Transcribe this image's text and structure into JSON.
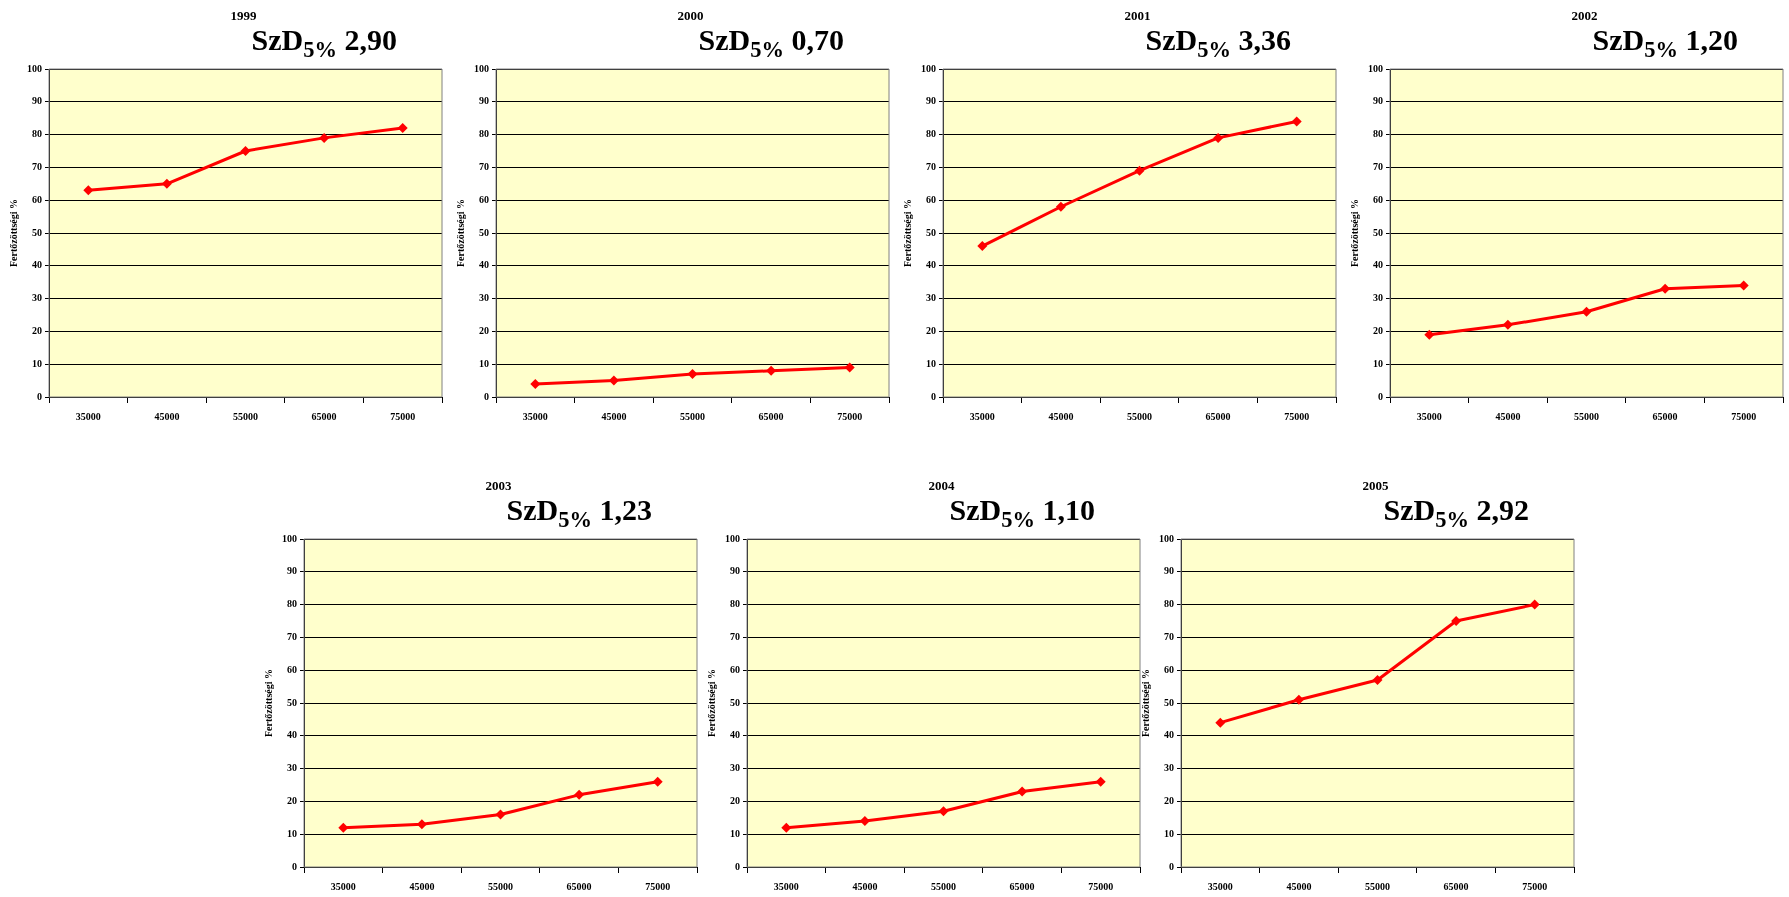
{
  "chart_data": [
    {
      "type": "line",
      "title": "1999",
      "subtitle": "SzD$_{5%}$ 2,90",
      "ylabel": "Fertőzöttségi %",
      "categories": [
        "35000",
        "45000",
        "55000",
        "65000",
        "75000"
      ],
      "series": [
        {
          "color": "#ff0000",
          "values": [
            63,
            65,
            75,
            79,
            82
          ]
        }
      ],
      "ylim": [
        0,
        100
      ],
      "yticks": [
        0,
        10,
        20,
        30,
        40,
        50,
        60,
        70,
        80,
        90,
        100
      ],
      "grid": "y",
      "marker": "diamond"
    },
    {
      "type": "line",
      "title": "2000",
      "subtitle": "SzD$_{5%}$ 0,70",
      "ylabel": "Fertőzöttségi %",
      "categories": [
        "35000",
        "45000",
        "55000",
        "65000",
        "75000"
      ],
      "series": [
        {
          "color": "#ff0000",
          "values": [
            4,
            5,
            7,
            8,
            9
          ]
        }
      ],
      "ylim": [
        0,
        100
      ],
      "yticks": [
        0,
        10,
        20,
        30,
        40,
        50,
        60,
        70,
        80,
        90,
        100
      ],
      "grid": "y",
      "marker": "diamond"
    },
    {
      "type": "line",
      "title": "2001",
      "subtitle": "SzD$_{5%}$ 3,36",
      "ylabel": "Fertőzöttségi %",
      "categories": [
        "35000",
        "45000",
        "55000",
        "65000",
        "75000"
      ],
      "series": [
        {
          "color": "#ff0000",
          "values": [
            46,
            58,
            69,
            79,
            84
          ]
        }
      ],
      "ylim": [
        0,
        100
      ],
      "yticks": [
        0,
        10,
        20,
        30,
        40,
        50,
        60,
        70,
        80,
        90,
        100
      ],
      "grid": "y",
      "marker": "diamond"
    },
    {
      "type": "line",
      "title": "2002",
      "subtitle": "SzD$_{5%}$ 1,20",
      "ylabel": "Fertőzöttségi %",
      "categories": [
        "35000",
        "45000",
        "55000",
        "65000",
        "75000"
      ],
      "series": [
        {
          "color": "#ff0000",
          "values": [
            19,
            22,
            26,
            33,
            34
          ]
        }
      ],
      "ylim": [
        0,
        100
      ],
      "yticks": [
        0,
        10,
        20,
        30,
        40,
        50,
        60,
        70,
        80,
        90,
        100
      ],
      "grid": "y",
      "marker": "diamond"
    },
    {
      "type": "line",
      "title": "2003",
      "subtitle": "SzD$_{5%}$ 1,23",
      "ylabel": "Fertőzöttségi %",
      "categories": [
        "35000",
        "45000",
        "55000",
        "65000",
        "75000"
      ],
      "series": [
        {
          "color": "#ff0000",
          "values": [
            12,
            13,
            16,
            22,
            26
          ]
        }
      ],
      "ylim": [
        0,
        100
      ],
      "yticks": [
        0,
        10,
        20,
        30,
        40,
        50,
        60,
        70,
        80,
        90,
        100
      ],
      "grid": "y",
      "marker": "diamond"
    },
    {
      "type": "line",
      "title": "2004",
      "subtitle": "SzD$_{5%}$ 1,10",
      "ylabel": "Fertőzöttségi %",
      "categories": [
        "35000",
        "45000",
        "55000",
        "65000",
        "75000"
      ],
      "series": [
        {
          "color": "#ff0000",
          "values": [
            12,
            14,
            17,
            23,
            26
          ]
        }
      ],
      "ylim": [
        0,
        100
      ],
      "yticks": [
        0,
        10,
        20,
        30,
        40,
        50,
        60,
        70,
        80,
        90,
        100
      ],
      "grid": "y",
      "marker": "diamond"
    },
    {
      "type": "line",
      "title": "2005",
      "subtitle": "SzD$_{5%}$ 2,92",
      "ylabel": "Fertőzöttségi %",
      "categories": [
        "35000",
        "45000",
        "55000",
        "65000",
        "75000"
      ],
      "series": [
        {
          "color": "#ff0000",
          "values": [
            44,
            51,
            57,
            75,
            80
          ]
        }
      ],
      "ylim": [
        0,
        100
      ],
      "yticks": [
        0,
        10,
        20,
        30,
        40,
        50,
        60,
        70,
        80,
        90,
        100
      ],
      "grid": "y",
      "marker": "diamond"
    }
  ]
}
